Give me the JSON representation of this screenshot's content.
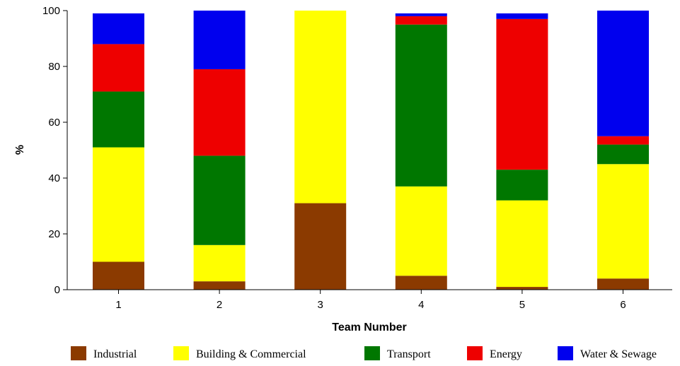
{
  "chart_data": {
    "type": "bar",
    "stacked": true,
    "categories": [
      "1",
      "2",
      "3",
      "4",
      "5",
      "6"
    ],
    "series": [
      {
        "name": "Industrial",
        "color": "#8B3A00",
        "values": [
          10,
          3,
          31,
          5,
          1,
          4
        ]
      },
      {
        "name": "Building & Commercial",
        "color": "#FFFF00",
        "values": [
          41,
          13,
          69,
          32,
          31,
          41
        ]
      },
      {
        "name": "Transport",
        "color": "#007700",
        "values": [
          20,
          32,
          0,
          58,
          11,
          7
        ]
      },
      {
        "name": "Energy",
        "color": "#EE0000",
        "values": [
          17,
          31,
          0,
          3,
          54,
          3
        ]
      },
      {
        "name": "Water & Sewage",
        "color": "#0000EE",
        "values": [
          11,
          21,
          0,
          1,
          2,
          45
        ]
      }
    ],
    "title": "",
    "xlabel": "Team Number",
    "ylabel": "%",
    "ylim": [
      0,
      100
    ],
    "yticks": [
      "0",
      "20",
      "40",
      "60",
      "80",
      "100"
    ],
    "grid": false,
    "legend": "bottom"
  }
}
